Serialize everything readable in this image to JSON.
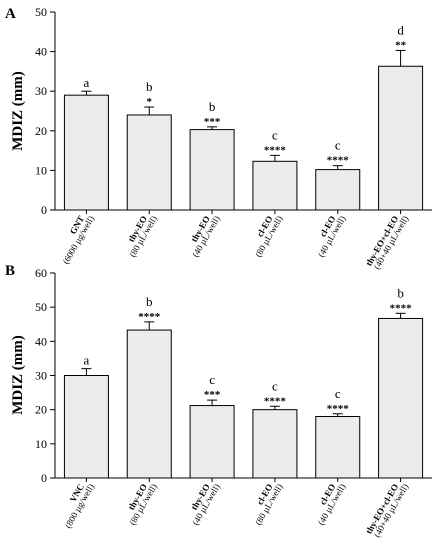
{
  "chart_data": [
    {
      "type": "bar",
      "panel": "A",
      "ylabel": "MDIZ (mm)",
      "ylim": [
        0,
        50
      ],
      "yticks": [
        0,
        10,
        20,
        30,
        40,
        50
      ],
      "categories": [
        {
          "name": "GNT",
          "sub": "(6000 µg/well)"
        },
        {
          "name": "thy-EO",
          "sub": "(80 µL/well)"
        },
        {
          "name": "thy-EO",
          "sub": "(40 µL/well)"
        },
        {
          "name": "cl-EO",
          "sub": "(80 µL/well)"
        },
        {
          "name": "cl-EO",
          "sub": "(40 µL/well)"
        },
        {
          "name": "thy-EO+cl-EO",
          "sub": "(40+40 µL/well)"
        }
      ],
      "values": [
        29,
        24,
        20.3,
        12.3,
        10.2,
        36.3
      ],
      "errors": [
        1.0,
        2.0,
        0.7,
        1.5,
        1.0,
        4.0
      ],
      "letters": [
        "a",
        "b",
        "b",
        "c",
        "c",
        "d"
      ],
      "stars": [
        "",
        "*",
        "***",
        "****",
        "****",
        "**"
      ]
    },
    {
      "type": "bar",
      "panel": "B",
      "ylabel": "MDIZ (mm)",
      "ylim": [
        0,
        60
      ],
      "yticks": [
        0,
        10,
        20,
        30,
        40,
        50,
        60
      ],
      "categories": [
        {
          "name": "VNC",
          "sub": "(800 µg/well)"
        },
        {
          "name": "thy-EO",
          "sub": "(80 µL/well)"
        },
        {
          "name": "thy-EO",
          "sub": "(40 µL/well)"
        },
        {
          "name": "cl-EO",
          "sub": "(80 µL/well)"
        },
        {
          "name": "cl-EO",
          "sub": "(40 µL/well)"
        },
        {
          "name": "thy-EO+cl-EO",
          "sub": "(40+40 µL/well)"
        }
      ],
      "values": [
        30,
        43.3,
        21.2,
        20,
        18,
        46.7
      ],
      "errors": [
        2.0,
        2.4,
        1.6,
        1.0,
        0.8,
        1.5
      ],
      "letters": [
        "a",
        "b",
        "c",
        "c",
        "c",
        "b"
      ],
      "stars": [
        "",
        "****",
        "***",
        "****",
        "****",
        "****"
      ]
    }
  ],
  "style": {
    "bar_fill": "#ececec",
    "bar_stroke": "#000000"
  }
}
